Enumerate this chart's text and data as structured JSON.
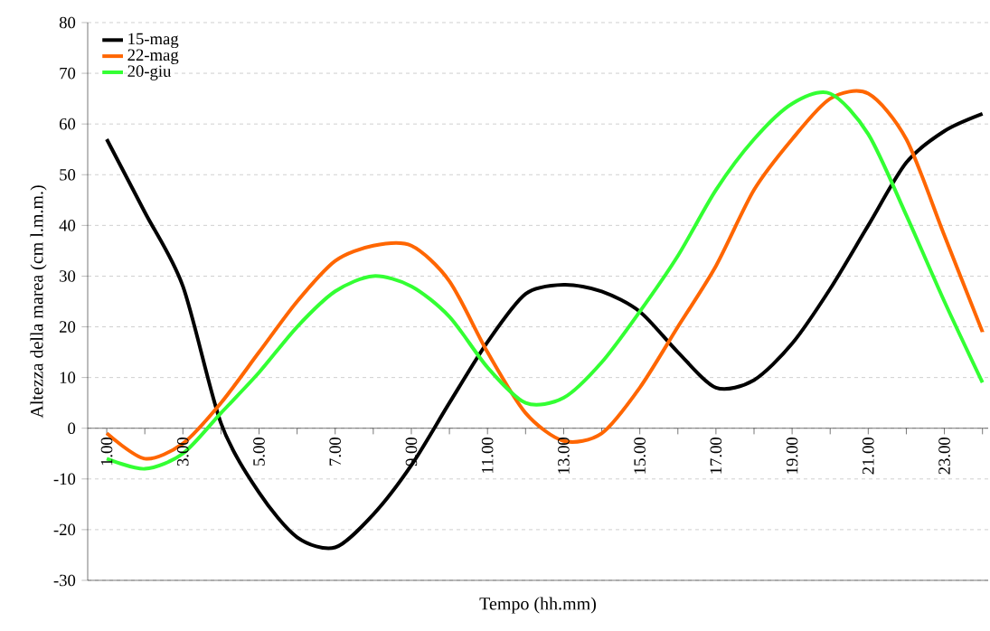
{
  "chart_data": {
    "type": "line",
    "xlabel": "Tempo (hh.mm)",
    "ylabel": "Altezza della marea (cm l.m.m.)",
    "categories": [
      "1.00",
      null,
      "3.00",
      null,
      "5.00",
      null,
      "7.00",
      null,
      "9.00",
      null,
      "11.00",
      null,
      "13.00",
      null,
      "15.00",
      null,
      "17.00",
      null,
      "19.00",
      null,
      "21.00",
      null,
      "23.00",
      null
    ],
    "series": [
      {
        "name": "15-mag",
        "color": "#000000",
        "values": [
          57,
          42.6,
          28,
          1,
          -12.7,
          -21.5,
          -23.5,
          -17,
          -7.3,
          5,
          17,
          26.5,
          28.3,
          27,
          23,
          15,
          8,
          9.5,
          16.7,
          27.5,
          40,
          52.4,
          58.6,
          62
        ]
      },
      {
        "name": "22-mag",
        "color": "#ff6600",
        "values": [
          -1,
          -6,
          -3,
          5,
          15,
          25,
          33,
          36,
          36,
          29,
          15,
          3,
          -2.5,
          -1,
          8,
          20,
          32,
          47,
          57,
          65,
          66,
          57,
          38,
          19
        ]
      },
      {
        "name": "20-giu",
        "color": "#33ff33",
        "values": [
          -6,
          -8,
          -5,
          3,
          11,
          20,
          27,
          30,
          28,
          22,
          12,
          5,
          6,
          13,
          23,
          34,
          47,
          57,
          64,
          66,
          58,
          42,
          25,
          9
        ]
      }
    ],
    "ylim": [
      -30,
      80
    ],
    "yticks": [
      -30,
      -20,
      -10,
      0,
      10,
      20,
      30,
      40,
      50,
      60,
      70,
      80
    ],
    "grid": "y",
    "legend": "top left",
    "marker": "none",
    "line_style": "solid"
  }
}
